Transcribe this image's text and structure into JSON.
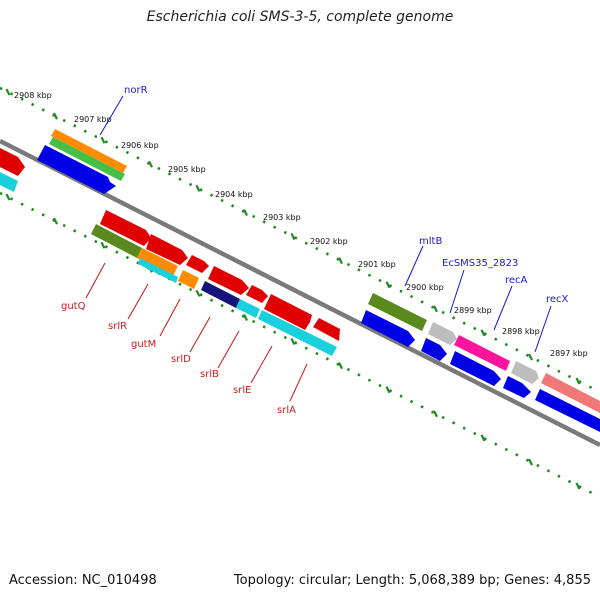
{
  "title": "Escherichia coli SMS-3-5, complete genome",
  "footer": {
    "accession": "Accession: NC_010498",
    "summary": "Topology: circular; Length: 5,068,389 bp; Genes: 4,855"
  },
  "kbp_labels": [
    "2908 kbp",
    "2907 kbp",
    "2906 kbp",
    "2905 kbp",
    "2904 kbp",
    "2903 kbp",
    "2902 kbp",
    "2901 kbp",
    "2900 kbp",
    "2899 kbp",
    "2898 kbp",
    "2897 kbp"
  ],
  "genes_top": [
    {
      "name": "norR",
      "color": "#1414cc"
    },
    {
      "name": "mltB",
      "color": "#1414cc"
    },
    {
      "name": "EcSMS35_2823",
      "color": "#1414cc"
    },
    {
      "name": "recA",
      "color": "#1414cc"
    },
    {
      "name": "recX",
      "color": "#1414cc"
    }
  ],
  "genes_bottom": [
    {
      "name": "gutQ",
      "color": "#cc1414"
    },
    {
      "name": "srlR",
      "color": "#cc1414"
    },
    {
      "name": "gutM",
      "color": "#cc1414"
    },
    {
      "name": "srlD",
      "color": "#cc1414"
    },
    {
      "name": "srlB",
      "color": "#cc1414"
    },
    {
      "name": "srlE",
      "color": "#cc1414"
    },
    {
      "name": "srlA",
      "color": "#cc1414"
    }
  ],
  "colors": {
    "backbone": "#7a7a7a",
    "ticks": "#1f8a1f",
    "red": "#e00000",
    "blue": "#0000e6",
    "cyan": "#1ad0dc",
    "olive": "#5a8a1e",
    "orange": "#ff8c00",
    "green": "#44c044",
    "gray": "#bdbdbd",
    "magenta": "#ff149c",
    "salmon": "#f07878",
    "navy": "#14147a"
  }
}
